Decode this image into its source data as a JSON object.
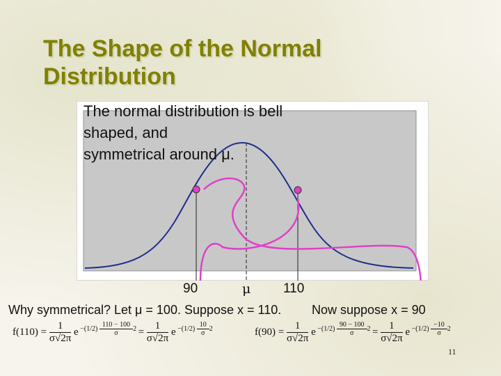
{
  "slide": {
    "title_line1": "The Shape of the Normal",
    "title_line2": "Distribution",
    "body_line1": "The normal distribution is bell",
    "body_line2": "shaped, and",
    "body_line3": "symmetrical around μ.",
    "axis_labels": {
      "left": "90",
      "center": "μ",
      "right": "110"
    },
    "caption_left": "Why symmetrical?  Let μ = 100.  Suppose x = 110.",
    "caption_right": "Now suppose x = 90",
    "formula_left": {
      "lhs": "f(110) =",
      "one": "1",
      "denom": "σ√2π",
      "e": "e",
      "exp": "−(1/2)",
      "frac_num": "110 − 100",
      "frac_den": "σ",
      "sq": "2",
      "eq": "=",
      "exp2": "−(1/2)",
      "frac_num2": "10",
      "frac_den2": "σ",
      "sq2": "2"
    },
    "formula_right": {
      "lhs": "f(90) =",
      "one": "1",
      "denom": "σ√2π",
      "e": "e",
      "exp": "−(1/2)",
      "frac_num": "90 − 100",
      "frac_den": "σ",
      "sq": "2",
      "eq": "=",
      "exp2": "−(1/2)",
      "frac_num2": "−10",
      "frac_den2": "σ",
      "sq2": "2"
    },
    "page_number": "11"
  },
  "colors": {
    "title": "#808000",
    "curve": "#1f2d8c",
    "arrow": "#e040c8",
    "plot_bg": "#c8c8c8"
  }
}
